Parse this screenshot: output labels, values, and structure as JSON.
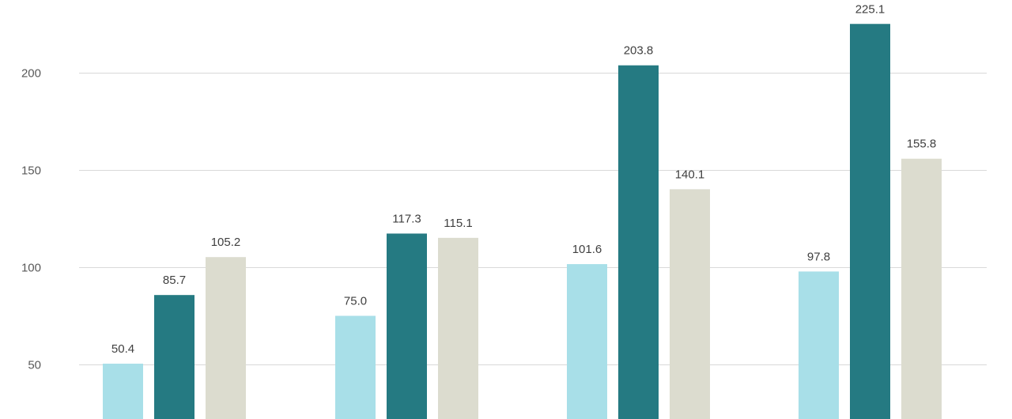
{
  "chart_data": {
    "type": "bar",
    "categories": [
      "",
      "",
      "",
      ""
    ],
    "series": [
      {
        "values": [
          50.4,
          75.0,
          101.6,
          97.8
        ],
        "color": "#a8dfe8"
      },
      {
        "values": [
          85.7,
          117.3,
          203.8,
          225.1
        ],
        "color": "#257a82"
      },
      {
        "values": [
          105.2,
          115.1,
          140.1,
          155.8
        ],
        "color": "#dcdccf"
      }
    ],
    "value_labels": [
      [
        "50.4",
        "75.0",
        "101.6",
        "97.8"
      ],
      [
        "85.7",
        "117.3",
        "203.8",
        "225.1"
      ],
      [
        "105.2",
        "115.1",
        "140.1",
        "155.8"
      ]
    ],
    "y_ticks": [
      50,
      100,
      150,
      200
    ],
    "y_tick_labels": [
      "50",
      "100",
      "150",
      "200"
    ],
    "ylim": [
      30,
      236
    ],
    "grid": true,
    "legend": "none",
    "title": "",
    "xlabel": "",
    "ylabel": ""
  }
}
